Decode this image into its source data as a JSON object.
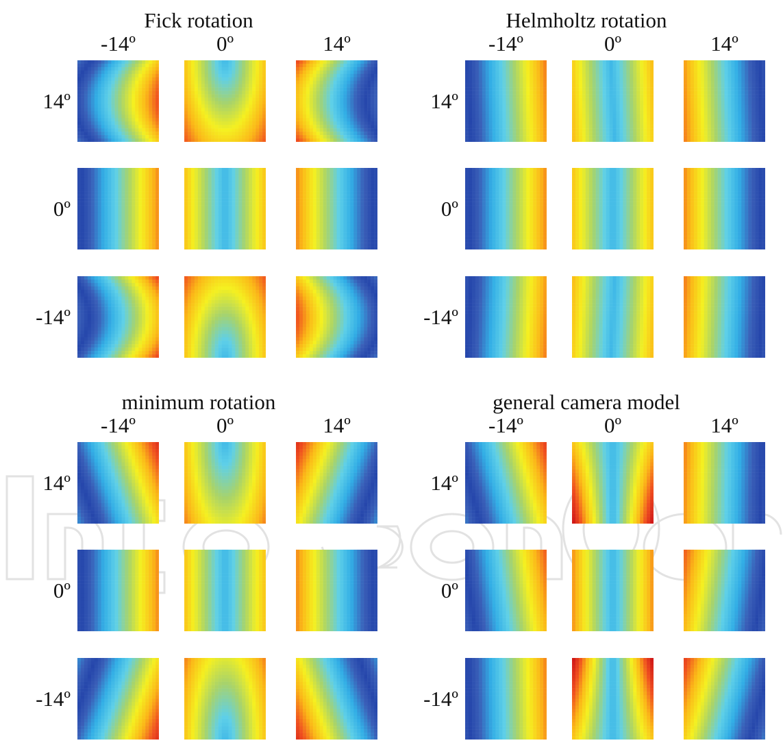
{
  "figure": {
    "panels": [
      {
        "id": "fick",
        "title": "Fick rotation",
        "col_labels": [
          "-14º",
          "0º",
          "14º"
        ],
        "row_labels": [
          "14º",
          "0º",
          "-14º"
        ],
        "pattern": "curved"
      },
      {
        "id": "helmholtz",
        "title": "Helmholtz rotation",
        "col_labels": [
          "-14º",
          "0º",
          "14º"
        ],
        "row_labels": [
          "14º",
          "0º",
          "-14º"
        ],
        "pattern": "vertical"
      },
      {
        "id": "minimum",
        "title": "minimum rotation",
        "col_labels": [
          "-14º",
          "0º",
          "14º"
        ],
        "row_labels": [
          "14º",
          "0º",
          "-14º"
        ],
        "pattern": "slanted"
      },
      {
        "id": "general",
        "title": "general camera model",
        "col_labels": [
          "-14º",
          "0º",
          "14º"
        ],
        "row_labels": [
          "14º",
          "0º",
          "-14º"
        ],
        "pattern": "tilted"
      }
    ],
    "colormap": [
      "#0a1a80",
      "#2040a8",
      "#3a5fb8",
      "#32aee6",
      "#5fd0e8",
      "#a8d36a",
      "#f5f020",
      "#fbb718",
      "#f05020",
      "#d01818",
      "#6b0f0f"
    ]
  }
}
